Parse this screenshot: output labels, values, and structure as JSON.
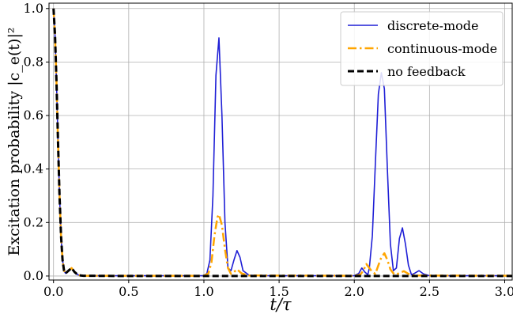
{
  "chart_data": {
    "type": "line",
    "xlabel": "t/τ",
    "ylabel": "Excitation probability |c_e(t)|²",
    "xlim": [
      -0.03,
      3.05
    ],
    "ylim": [
      -0.015,
      1.02
    ],
    "xticks": [
      0.0,
      0.5,
      1.0,
      1.5,
      2.0,
      2.5,
      3.0
    ],
    "xtick_labels": [
      "0.0",
      "0.5",
      "1.0",
      "1.5",
      "2.0",
      "2.5",
      "3.0"
    ],
    "yticks": [
      0.0,
      0.2,
      0.4,
      0.6,
      0.8,
      1.0
    ],
    "ytick_labels": [
      "0.0",
      "0.2",
      "0.4",
      "0.6",
      "0.8",
      "1.0"
    ],
    "grid": true,
    "legend_position": "top-right",
    "series": [
      {
        "name": "discrete-mode",
        "color": "#1f1fd6",
        "style": "solid",
        "x": [
          0,
          0.01,
          0.02,
          0.03,
          0.04,
          0.05,
          0.06,
          0.07,
          0.08,
          0.1,
          0.12,
          0.14,
          0.16,
          0.18,
          0.2,
          0.5,
          0.9,
          1.0,
          1.02,
          1.04,
          1.06,
          1.08,
          1.1,
          1.12,
          1.14,
          1.16,
          1.18,
          1.2,
          1.22,
          1.24,
          1.26,
          1.3,
          1.35,
          1.4,
          2.0,
          2.03,
          2.05,
          2.07,
          2.09,
          2.1,
          2.12,
          2.14,
          2.16,
          2.18,
          2.2,
          2.22,
          2.24,
          2.26,
          2.28,
          2.3,
          2.32,
          2.34,
          2.36,
          2.38,
          2.4,
          2.43,
          2.46,
          2.5,
          3.05
        ],
        "y": [
          1.0,
          0.9,
          0.72,
          0.5,
          0.3,
          0.15,
          0.06,
          0.02,
          0.01,
          0.02,
          0.03,
          0.015,
          0.005,
          0.002,
          0.001,
          0.001,
          0.001,
          0.001,
          0.01,
          0.06,
          0.3,
          0.75,
          0.89,
          0.6,
          0.2,
          0.03,
          0.02,
          0.06,
          0.095,
          0.07,
          0.02,
          0.003,
          0.001,
          0.001,
          0.001,
          0.01,
          0.03,
          0.015,
          0.005,
          0.03,
          0.15,
          0.42,
          0.68,
          0.76,
          0.7,
          0.4,
          0.12,
          0.02,
          0.03,
          0.14,
          0.18,
          0.12,
          0.04,
          0.005,
          0.01,
          0.02,
          0.008,
          0.001,
          0.001
        ]
      },
      {
        "name": "continuous-mode",
        "color": "#ffa500",
        "style": "dashdot",
        "x": [
          0,
          0.01,
          0.02,
          0.03,
          0.04,
          0.05,
          0.06,
          0.07,
          0.08,
          0.1,
          0.12,
          0.14,
          0.16,
          0.18,
          0.2,
          0.5,
          1.0,
          1.03,
          1.05,
          1.07,
          1.09,
          1.1,
          1.12,
          1.14,
          1.16,
          1.18,
          1.2,
          1.22,
          1.25,
          1.3,
          2.0,
          2.04,
          2.06,
          2.08,
          2.1,
          2.12,
          2.14,
          2.16,
          2.18,
          2.2,
          2.22,
          2.24,
          2.26,
          2.28,
          2.3,
          2.33,
          2.36,
          2.4,
          3.05
        ],
        "y": [
          1.0,
          0.9,
          0.72,
          0.5,
          0.3,
          0.15,
          0.06,
          0.02,
          0.01,
          0.02,
          0.03,
          0.015,
          0.005,
          0.002,
          0.001,
          0.001,
          0.001,
          0.01,
          0.05,
          0.15,
          0.22,
          0.23,
          0.19,
          0.1,
          0.03,
          0.008,
          0.015,
          0.025,
          0.01,
          0.002,
          0.001,
          0.005,
          0.02,
          0.045,
          0.03,
          0.015,
          0.008,
          0.04,
          0.07,
          0.085,
          0.06,
          0.025,
          0.01,
          0.005,
          0.012,
          0.018,
          0.008,
          0.002,
          0.001
        ]
      },
      {
        "name": "no feedback",
        "color": "#000000",
        "style": "dashed",
        "x": [
          0,
          0.01,
          0.02,
          0.03,
          0.04,
          0.05,
          0.06,
          0.07,
          0.08,
          0.1,
          0.12,
          0.14,
          0.16,
          0.18,
          0.2,
          0.5,
          1.0,
          2.0,
          3.05
        ],
        "y": [
          1.0,
          0.9,
          0.72,
          0.5,
          0.3,
          0.15,
          0.06,
          0.02,
          0.01,
          0.02,
          0.03,
          0.015,
          0.005,
          0.002,
          0.001,
          0.0,
          0.0,
          0.0,
          0.0
        ]
      }
    ]
  }
}
